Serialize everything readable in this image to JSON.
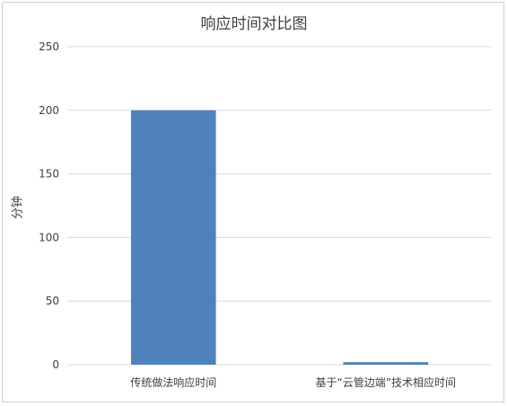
{
  "chart_data": {
    "type": "bar",
    "title": "响应时间对比图",
    "xlabel": "",
    "ylabel": "分钟",
    "categories": [
      "传统做法响应时间",
      "基于“云管边端”技术相应时间"
    ],
    "values": [
      200,
      2
    ],
    "ylim": [
      0,
      250
    ],
    "yticks": [
      0,
      50,
      100,
      150,
      200,
      250
    ],
    "grid": true,
    "legend": "none",
    "bar_color": "#4f81bd",
    "grid_color": "#d9d9d9"
  }
}
